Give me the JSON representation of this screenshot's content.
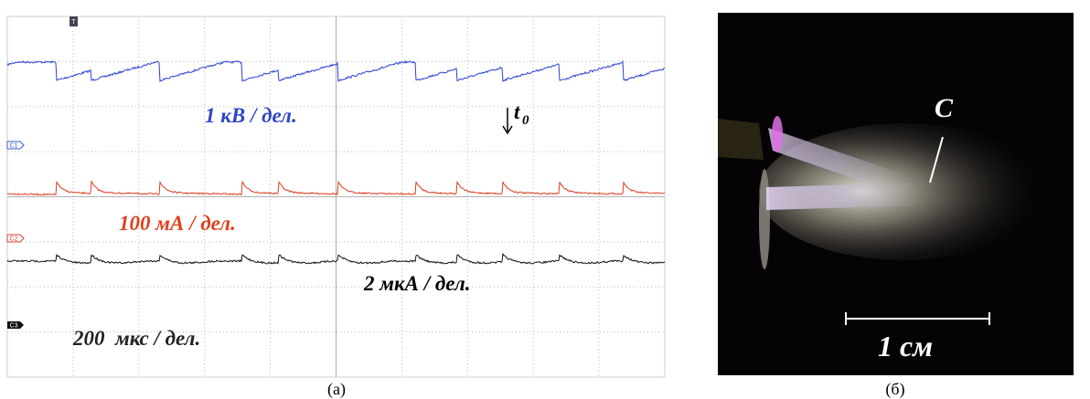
{
  "panel_a": {
    "trigger": "T",
    "channels": [
      "C1",
      "C2",
      "C3"
    ],
    "voltage_scale": "1 кВ / дел.",
    "t0_label": "t",
    "t0_subscript": "0",
    "current_scale": "100 мА / дел.",
    "probe_scale": "2 мкА / дел.",
    "time_scale": "200  мкс / дел.",
    "caption": "(а)"
  },
  "panel_b": {
    "marker": "C",
    "scale_bar": "1 см",
    "caption": "(б)"
  }
}
